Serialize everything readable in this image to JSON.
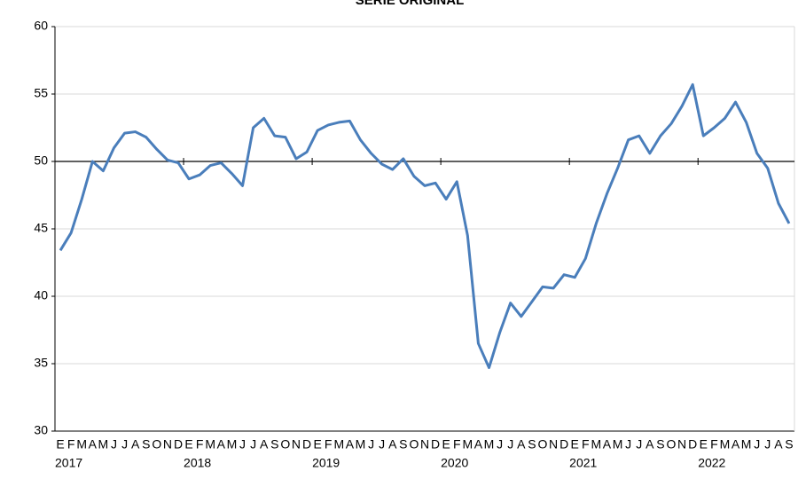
{
  "chart_data": {
    "type": "line",
    "title": "SERIE ORIGINAL",
    "categories": [
      "E",
      "F",
      "M",
      "A",
      "M",
      "J",
      "J",
      "A",
      "S",
      "O",
      "N",
      "D",
      "E",
      "F",
      "M",
      "A",
      "M",
      "J",
      "J",
      "A",
      "S",
      "O",
      "N",
      "D",
      "E",
      "F",
      "M",
      "A",
      "M",
      "J",
      "J",
      "A",
      "S",
      "O",
      "N",
      "D",
      "E",
      "F",
      "M",
      "A",
      "M",
      "J",
      "J",
      "A",
      "S",
      "O",
      "N",
      "D",
      "E",
      "F",
      "M",
      "A",
      "M",
      "J",
      "J",
      "A",
      "S",
      "O",
      "N",
      "D",
      "E",
      "F",
      "M",
      "A",
      "M",
      "J",
      "J",
      "A",
      "S"
    ],
    "years": [
      "2017",
      null,
      null,
      null,
      null,
      null,
      null,
      null,
      null,
      null,
      null,
      null,
      "2018",
      null,
      null,
      null,
      null,
      null,
      null,
      null,
      null,
      null,
      null,
      null,
      "2019",
      null,
      null,
      null,
      null,
      null,
      null,
      null,
      null,
      null,
      null,
      null,
      "2020",
      null,
      null,
      null,
      null,
      null,
      null,
      null,
      null,
      null,
      null,
      null,
      "2021",
      null,
      null,
      null,
      null,
      null,
      null,
      null,
      null,
      null,
      null,
      null,
      "2022",
      null,
      null,
      null,
      null,
      null,
      null,
      null,
      null
    ],
    "series": [
      {
        "color": "#4a7ebb",
        "values": [
          43.4,
          44.7,
          47.2,
          50.0,
          49.3,
          51.0,
          52.1,
          52.2,
          51.8,
          50.9,
          50.1,
          49.9,
          48.7,
          49.0,
          49.7,
          49.9,
          49.1,
          48.2,
          52.5,
          53.2,
          51.9,
          51.8,
          50.2,
          50.7,
          52.3,
          52.7,
          52.9,
          53.0,
          51.6,
          50.6,
          49.8,
          49.4,
          50.2,
          48.9,
          48.2,
          48.4,
          47.2,
          48.5,
          44.5,
          36.5,
          34.7,
          37.3,
          39.5,
          38.5,
          39.6,
          40.7,
          40.6,
          41.6,
          41.4,
          42.8,
          45.4,
          47.6,
          49.5,
          51.6,
          51.9,
          50.6,
          51.9,
          52.8,
          54.1,
          55.7,
          51.9,
          52.5,
          53.2,
          54.4,
          52.9,
          50.6,
          49.5,
          46.9,
          45.4
        ]
      }
    ],
    "ylim": [
      30,
      60
    ],
    "yticks": [
      30,
      35,
      40,
      45,
      50,
      55,
      60
    ],
    "x_axis_crosses": 50,
    "grid": true
  }
}
